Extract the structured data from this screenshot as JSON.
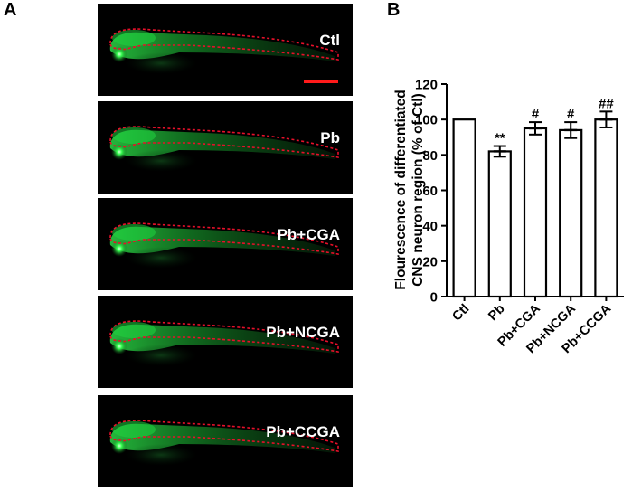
{
  "panel_a": {
    "letter": "A",
    "images": [
      {
        "label": "Ctl",
        "scale_bar": true
      },
      {
        "label": "Pb",
        "scale_bar": false
      },
      {
        "label": "Pb+CGA",
        "scale_bar": false
      },
      {
        "label": "Pb+NCGA",
        "scale_bar": false
      },
      {
        "label": "Pb+CCGA",
        "scale_bar": false
      }
    ],
    "colors": {
      "fluorescence": "#1fd640",
      "outline": "#e8102a",
      "background": "#000000",
      "scale_bar": "#ff1a1a"
    }
  },
  "panel_b": {
    "letter": "B"
  },
  "chart_data": {
    "type": "bar",
    "categories": [
      "Ctl",
      "Pb",
      "Pb+CGA",
      "Pb+NCGA",
      "Pb+CCGA"
    ],
    "values": [
      100,
      82,
      95,
      94,
      100
    ],
    "errors": [
      0,
      3,
      3.5,
      4.5,
      4.5
    ],
    "significance": [
      "",
      "**",
      "#",
      "#",
      "##"
    ],
    "ylabel": "Flourescence of differentiated CNS neuron region (% of Ctl)",
    "ylabel_lines": [
      "Flourescence of differentiated",
      "CNS neuron region (% of Ctl)"
    ],
    "yticks": [
      0,
      20,
      40,
      60,
      80,
      100,
      120
    ],
    "ylim": [
      0,
      120
    ],
    "grid": false,
    "bar_fill": "#ffffff",
    "bar_stroke": "#000000"
  }
}
